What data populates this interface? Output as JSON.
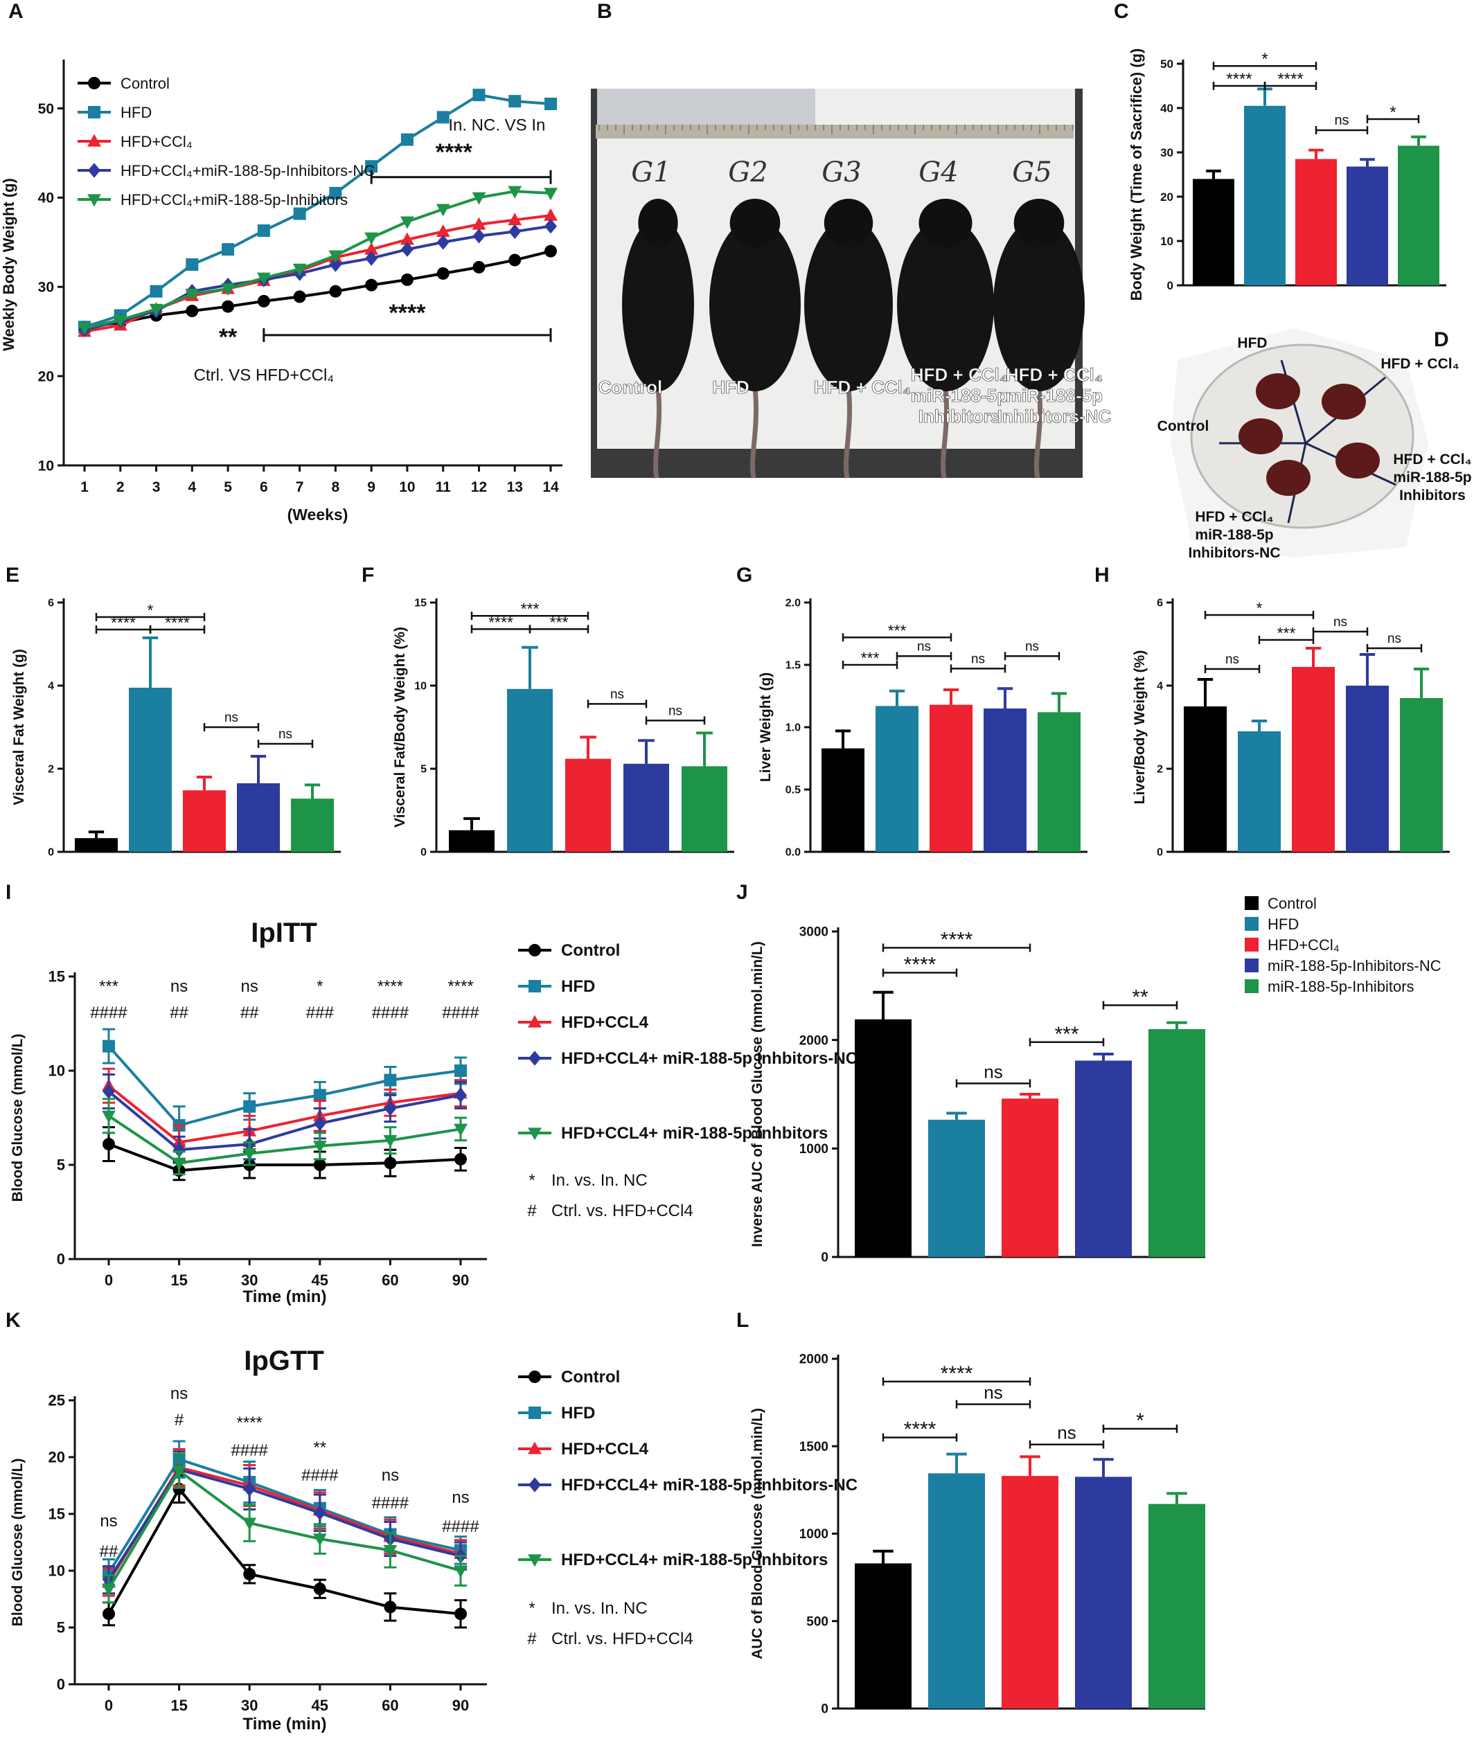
{
  "panels": {
    "A": "A",
    "B": "B",
    "C": "C",
    "D": "D",
    "E": "E",
    "F": "F",
    "G": "G",
    "H": "H",
    "I": "I",
    "J": "J",
    "K": "K",
    "L": "L"
  },
  "colors": {
    "control": "#000000",
    "hfd": "#1a7fa0",
    "hfd_ccl4": "#ee2230",
    "inhibitors_nc": "#2e3b9e",
    "inhibitors": "#1d9447"
  },
  "photo_b": {
    "group_labels": [
      "G1",
      "G2",
      "G3",
      "G4",
      "G5"
    ],
    "mouse_labels": [
      [
        "Control"
      ],
      [
        "HFD"
      ],
      [
        "HFD + CCl₄"
      ],
      [
        "HFD + CCl₄",
        "miR-188-5p",
        "Inhibitors"
      ],
      [
        "HFD + CCl₄",
        "miR-188-5p",
        "Inhibitors-NC"
      ]
    ]
  },
  "photo_d": {
    "labels": {
      "hfd": "HFD",
      "hfd_ccl4": "HFD + CCl₄",
      "control": "Control",
      "inhibitors": [
        "HFD + CCl₄",
        "miR-188-5p",
        "Inhibitors"
      ],
      "inhibitors_nc": [
        "HFD + CCl₄",
        "miR-188-5p",
        "Inhibitors-NC"
      ]
    }
  },
  "chart_data": [
    {
      "id": "A",
      "type": "line",
      "xlabel": "(Weeks)",
      "ylabel": "Weekly Body Weight (g)",
      "x": [
        1,
        2,
        3,
        4,
        5,
        6,
        7,
        8,
        9,
        10,
        11,
        12,
        13,
        14
      ],
      "xlim": [
        1,
        14
      ],
      "ylim": [
        10,
        55
      ],
      "yticks": [
        10,
        20,
        30,
        40,
        50
      ],
      "series": [
        {
          "name": "Control",
          "color": "#000000",
          "marker": "circle",
          "values": [
            25.5,
            26,
            26.8,
            27.3,
            27.8,
            28.4,
            28.9,
            29.5,
            30.2,
            30.8,
            31.5,
            32.2,
            33,
            34
          ]
        },
        {
          "name": "HFD",
          "color": "#1a7fa0",
          "marker": "square",
          "values": [
            25.5,
            26.8,
            29.5,
            32.5,
            34.2,
            36.3,
            38.2,
            40.5,
            43.5,
            46.5,
            49,
            51.5,
            50.8,
            50.5
          ]
        },
        {
          "name": "HFD+CCl₄",
          "color": "#ee2230",
          "marker": "triangle-up",
          "values": [
            25,
            25.7,
            27.5,
            29,
            29.8,
            30.7,
            31.8,
            33.3,
            34.2,
            35.3,
            36.2,
            37,
            37.5,
            38
          ]
        },
        {
          "name": "HFD+CCl₄+miR-188-5p-Inhibitors-NC",
          "color": "#2e3b9e",
          "marker": "diamond",
          "values": [
            25.2,
            26.2,
            27.3,
            29.5,
            30.2,
            30.8,
            31.5,
            32.5,
            33.2,
            34.2,
            35,
            35.7,
            36.2,
            36.8
          ]
        },
        {
          "name": "HFD+CCl₄+miR-188-5p-Inhibitors",
          "color": "#1d9447",
          "marker": "triangle-down",
          "values": [
            25.4,
            26.3,
            27.5,
            29.2,
            29.8,
            31,
            32,
            33.5,
            35.5,
            37.3,
            38.7,
            40,
            40.7,
            40.5
          ]
        }
      ],
      "annotations": [
        {
          "text": "In. NC. VS In",
          "x": 12.5,
          "y": 47.5
        },
        {
          "text": "****",
          "x": 11.3,
          "y": 44.2
        },
        {
          "text": "**",
          "x": 5,
          "y": 23.5
        },
        {
          "text": "****",
          "x": 10,
          "y": 26.2
        },
        {
          "text": "Ctrl. VS HFD+CCl₄",
          "x": 6,
          "y": 19.5
        }
      ],
      "brackets": [
        {
          "x1": 9,
          "x2": 14,
          "y": 42.3
        },
        {
          "x1": 6,
          "x2": 14,
          "y": 24.6
        }
      ]
    },
    {
      "id": "C",
      "type": "bar",
      "ylabel": "Body Weight  (Time of Sacrifice) (g)",
      "ylim": [
        0,
        50
      ],
      "yticks": [
        0,
        10,
        20,
        30,
        40,
        50
      ],
      "categories": [
        "Control",
        "HFD",
        "HFD+CCl₄",
        "HFD+CCl₄+miR-188-5p-Inhibitors-NC",
        "HFD+CCl₄+miR-188-5p-Inhibitors"
      ],
      "values": [
        24,
        40.5,
        28.5,
        26.8,
        31.5
      ],
      "errors": [
        1.8,
        3.8,
        2,
        1.6,
        2
      ],
      "sig": [
        {
          "a": 0,
          "b": 1,
          "y": 45,
          "label": "****"
        },
        {
          "a": 1,
          "b": 2,
          "y": 45,
          "label": "****"
        },
        {
          "a": 0,
          "b": 2,
          "y": 49.5,
          "label": "*"
        },
        {
          "a": 2,
          "b": 3,
          "y": 35,
          "label": "ns"
        },
        {
          "a": 3,
          "b": 4,
          "y": 37.5,
          "label": "*"
        }
      ]
    },
    {
      "id": "E",
      "type": "bar",
      "ylabel": "Visceral Fat Weight (g)",
      "ylim": [
        0,
        6
      ],
      "yticks": [
        0,
        2,
        4,
        6
      ],
      "categories": [
        "Control",
        "HFD",
        "HFD+CCl₄",
        "HFD+CCl₄+miR-188-5p-Inhibitors-NC",
        "HFD+CCl₄+miR-188-5p-Inhibitors"
      ],
      "values": [
        0.33,
        3.95,
        1.48,
        1.65,
        1.28
      ],
      "errors": [
        0.15,
        1.2,
        0.32,
        0.65,
        0.33
      ],
      "sig": [
        {
          "a": 0,
          "b": 1,
          "y": 5.35,
          "label": "****"
        },
        {
          "a": 1,
          "b": 2,
          "y": 5.35,
          "label": "****"
        },
        {
          "a": 0,
          "b": 2,
          "y": 5.65,
          "label": "*"
        },
        {
          "a": 2,
          "b": 3,
          "y": 3.0,
          "label": "ns"
        },
        {
          "a": 3,
          "b": 4,
          "y": 2.6,
          "label": "ns"
        }
      ]
    },
    {
      "id": "F",
      "type": "bar",
      "ylabel": "Visceral Fat/Body Weight (%)",
      "ylim": [
        0,
        15
      ],
      "yticks": [
        0,
        5,
        10,
        15
      ],
      "categories": [
        "Control",
        "HFD",
        "HFD+CCl₄",
        "HFD+CCl₄+miR-188-5p-Inhibitors-NC",
        "HFD+CCl₄+miR-188-5p-Inhibitors"
      ],
      "values": [
        1.3,
        9.8,
        5.6,
        5.3,
        5.15
      ],
      "errors": [
        0.7,
        2.5,
        1.3,
        1.4,
        2
      ],
      "sig": [
        {
          "a": 0,
          "b": 1,
          "y": 13.4,
          "label": "****"
        },
        {
          "a": 1,
          "b": 2,
          "y": 13.4,
          "label": "***"
        },
        {
          "a": 0,
          "b": 2,
          "y": 14.2,
          "label": "***"
        },
        {
          "a": 2,
          "b": 3,
          "y": 8.9,
          "label": "ns"
        },
        {
          "a": 3,
          "b": 4,
          "y": 7.9,
          "label": "ns"
        }
      ]
    },
    {
      "id": "G",
      "type": "bar",
      "ylabel": "Liver Weight (g)",
      "ylim": [
        0,
        2.0
      ],
      "yticks": [
        0.0,
        0.5,
        1.0,
        1.5,
        2.0
      ],
      "ytick_decimals": 1,
      "categories": [
        "Control",
        "HFD",
        "HFD+CCl₄",
        "HFD+CCl₄+miR-188-5p-Inhibitors-NC",
        "HFD+CCl₄+miR-188-5p-Inhibitors"
      ],
      "values": [
        0.83,
        1.17,
        1.18,
        1.15,
        1.12
      ],
      "errors": [
        0.14,
        0.12,
        0.12,
        0.16,
        0.15
      ],
      "sig": [
        {
          "a": 0,
          "b": 1,
          "y": 1.5,
          "label": "***"
        },
        {
          "a": 0,
          "b": 2,
          "y": 1.72,
          "label": "***"
        },
        {
          "a": 1,
          "b": 2,
          "y": 1.57,
          "label": "ns"
        },
        {
          "a": 2,
          "b": 3,
          "y": 1.47,
          "label": "ns"
        },
        {
          "a": 3,
          "b": 4,
          "y": 1.57,
          "label": "ns"
        }
      ]
    },
    {
      "id": "H",
      "type": "bar",
      "ylabel": "Liver/Body Weight (%)",
      "ylim": [
        0,
        6
      ],
      "yticks": [
        0,
        2,
        4,
        6
      ],
      "categories": [
        "Control",
        "HFD",
        "HFD+CCl₄",
        "HFD+CCl₄+miR-188-5p-Inhibitors-NC",
        "HFD+CCl₄+miR-188-5p-Inhibitors"
      ],
      "values": [
        3.5,
        2.9,
        4.45,
        4.0,
        3.7
      ],
      "errors": [
        0.65,
        0.25,
        0.45,
        0.75,
        0.7
      ],
      "sig": [
        {
          "a": 0,
          "b": 1,
          "y": 4.4,
          "label": "ns"
        },
        {
          "a": 1,
          "b": 2,
          "y": 5.1,
          "label": "***"
        },
        {
          "a": 0,
          "b": 2,
          "y": 5.7,
          "label": "*"
        },
        {
          "a": 2,
          "b": 3,
          "y": 5.3,
          "label": "ns"
        },
        {
          "a": 3,
          "b": 4,
          "y": 4.9,
          "label": "ns"
        }
      ]
    },
    {
      "id": "I",
      "type": "line",
      "title": "IpITT",
      "xlabel": "Time (min)",
      "ylabel": "Blood Glucose (mmol/L)",
      "categories": [
        "0",
        "15",
        "30",
        "45",
        "60",
        "90"
      ],
      "ylim": [
        0,
        15
      ],
      "yticks": [
        0,
        5,
        10,
        15
      ],
      "series": [
        {
          "name": "Control",
          "color": "#000000",
          "marker": "circle",
          "values": [
            6.1,
            4.7,
            5.0,
            5.0,
            5.1,
            5.3
          ],
          "errors": [
            0.9,
            0.5,
            0.7,
            0.7,
            0.7,
            0.6
          ]
        },
        {
          "name": "HFD",
          "color": "#1a7fa0",
          "marker": "square",
          "values": [
            11.3,
            7.1,
            8.1,
            8.7,
            9.5,
            10.0
          ],
          "errors": [
            0.9,
            1.0,
            0.7,
            0.7,
            0.7,
            0.7
          ]
        },
        {
          "name": "HFD+CCL4",
          "color": "#ee2230",
          "marker": "triangle-up",
          "values": [
            9.2,
            6.2,
            6.8,
            7.6,
            8.3,
            8.8
          ],
          "errors": [
            0.9,
            0.9,
            0.8,
            0.8,
            0.7,
            0.7
          ]
        },
        {
          "name": "HFD+CCL4+ miR-188-5p Inhbitors-NC",
          "color": "#2e3b9e",
          "marker": "diamond",
          "values": [
            8.9,
            5.8,
            6.1,
            7.2,
            8.0,
            8.7
          ],
          "errors": [
            0.9,
            0.7,
            0.8,
            0.8,
            0.7,
            0.7
          ]
        },
        {
          "name": "HFD+CCL4+ miR-188-5p Inhbitors",
          "color": "#1d9447",
          "marker": "triangle-down",
          "values": [
            7.6,
            5.1,
            5.6,
            6.0,
            6.3,
            6.9
          ],
          "errors": [
            0.9,
            0.6,
            0.6,
            0.7,
            0.7,
            0.6
          ]
        }
      ],
      "star_labels": [
        "***",
        "ns",
        "ns",
        "*",
        "****",
        "****"
      ],
      "hash_labels": [
        "####",
        "##",
        "##",
        "###",
        "####",
        "####"
      ],
      "legend_notes": [
        {
          "symbol": "*",
          "text": "In. vs. In. NC"
        },
        {
          "symbol": "#",
          "text": "Ctrl. vs. HFD+CCl4"
        }
      ]
    },
    {
      "id": "J",
      "type": "bar",
      "ylabel": "Inverse AUC of Blood Glucose (mmol.min/L)",
      "ylim": [
        0,
        3000
      ],
      "yticks": [
        0,
        1000,
        2000,
        3000
      ],
      "categories": [
        "Control",
        "HFD",
        "HFD+CCl₄",
        "miR-188-5p-Inhibitors-NC",
        "miR-188-5p-Inhibitors"
      ],
      "values": [
        2190,
        1265,
        1460,
        1810,
        2100
      ],
      "errors": [
        250,
        60,
        40,
        60,
        60
      ],
      "sig": [
        {
          "a": 0,
          "b": 1,
          "y": 2620,
          "label": "****"
        },
        {
          "a": 0,
          "b": 2,
          "y": 2850,
          "label": "****"
        },
        {
          "a": 1,
          "b": 2,
          "y": 1600,
          "label": "ns"
        },
        {
          "a": 2,
          "b": 3,
          "y": 1980,
          "label": "***"
        },
        {
          "a": 3,
          "b": 4,
          "y": 2320,
          "label": "**"
        }
      ],
      "legend": [
        "Control",
        "HFD",
        "HFD+CCl₄",
        "miR-188-5p-Inhibitors-NC",
        "miR-188-5p-Inhibitors"
      ]
    },
    {
      "id": "K",
      "type": "line",
      "title": "IpGTT",
      "xlabel": "Time (min)",
      "ylabel": "Blood Glucose (mmol/L)",
      "categories": [
        "0",
        "15",
        "30",
        "45",
        "60",
        "90"
      ],
      "ylim": [
        0,
        25
      ],
      "yticks": [
        0,
        5,
        10,
        15,
        20,
        25
      ],
      "series": [
        {
          "name": "Control",
          "color": "#000000",
          "marker": "circle",
          "values": [
            6.2,
            17.2,
            9.7,
            8.4,
            6.8,
            6.2
          ],
          "errors": [
            1.0,
            1.2,
            0.8,
            0.8,
            1.2,
            1.2
          ]
        },
        {
          "name": "HFD",
          "color": "#1a7fa0",
          "marker": "square",
          "values": [
            9.8,
            19.8,
            17.8,
            15.5,
            13.2,
            11.8
          ],
          "errors": [
            1.2,
            1.6,
            1.8,
            1.6,
            1.5,
            1.2
          ]
        },
        {
          "name": "HFD+CCL4",
          "color": "#ee2230",
          "marker": "triangle-up",
          "values": [
            9.0,
            19.1,
            17.5,
            15.3,
            13.0,
            11.5
          ],
          "errors": [
            1.2,
            1.6,
            1.8,
            1.6,
            1.5,
            1.2
          ]
        },
        {
          "name": "HFD+CCL4+ miR-188-5p Inhbitors-NC",
          "color": "#2e3b9e",
          "marker": "diamond",
          "values": [
            9.2,
            18.9,
            17.2,
            15.1,
            12.8,
            11.3
          ],
          "errors": [
            1.2,
            1.6,
            1.8,
            1.6,
            1.5,
            1.2
          ]
        },
        {
          "name": "HFD+CCL4+ miR-188-5p Inhbitors",
          "color": "#1d9447",
          "marker": "triangle-down",
          "values": [
            8.4,
            18.8,
            14.2,
            12.8,
            11.8,
            10.0
          ],
          "errors": [
            1.2,
            1.5,
            1.6,
            1.3,
            1.5,
            1.3
          ]
        }
      ],
      "star_labels": [
        "ns",
        "ns",
        "****",
        "**",
        "ns",
        "ns"
      ],
      "hash_labels": [
        "##",
        "#",
        "####",
        "####",
        "####",
        "####"
      ],
      "legend_notes": [
        {
          "symbol": "*",
          "text": "In. vs. In. NC"
        },
        {
          "symbol": "#",
          "text": "Ctrl. vs. HFD+CCl4"
        }
      ]
    },
    {
      "id": "L",
      "type": "bar",
      "ylabel": "AUC of Blood Glucose (mmol.min/L)",
      "ylim": [
        0,
        2000
      ],
      "yticks": [
        0,
        500,
        1000,
        1500,
        2000
      ],
      "categories": [
        "Control",
        "HFD",
        "HFD+CCl₄",
        "miR-188-5p-Inhibitors-NC",
        "miR-188-5p-Inhibitors"
      ],
      "values": [
        830,
        1345,
        1330,
        1325,
        1170
      ],
      "errors": [
        70,
        110,
        110,
        100,
        60
      ],
      "sig": [
        {
          "a": 0,
          "b": 1,
          "y": 1550,
          "label": "****"
        },
        {
          "a": 0,
          "b": 2,
          "y": 1870,
          "label": "****"
        },
        {
          "a": 1,
          "b": 2,
          "y": 1740,
          "label": "ns"
        },
        {
          "a": 2,
          "b": 3,
          "y": 1510,
          "label": "ns"
        },
        {
          "a": 3,
          "b": 4,
          "y": 1600,
          "label": "*"
        }
      ]
    }
  ]
}
